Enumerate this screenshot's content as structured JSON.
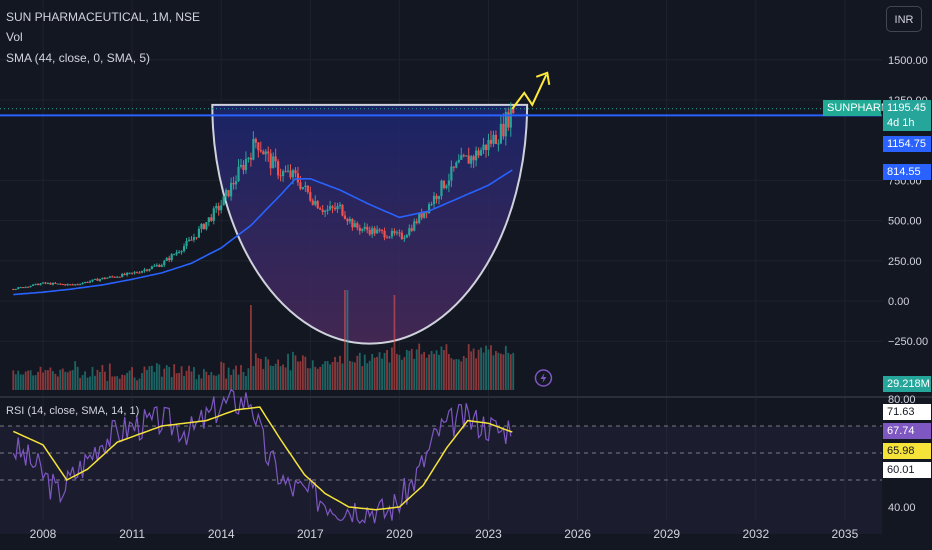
{
  "header": {
    "symbol_line": "SUN PHARMACEUTICAL, 1M, NSE",
    "volume_label": "Vol",
    "sma_label": "SMA (44, close, 0, SMA, 5)",
    "currency_button": "INR"
  },
  "price_axis": {
    "ticks": [
      "1500.00",
      "1250.00",
      "750.00",
      "500.00",
      "250.00",
      "0.00",
      "−250.00"
    ]
  },
  "price_tags": {
    "symbol_name": "SUNPHARMA",
    "last_price": "1195.45",
    "countdown": "4d 1h",
    "level_line": "1154.75",
    "sma_value": "814.55",
    "volume_value": "29.218M"
  },
  "rsi": {
    "label": "RSI (14, close, SMA, 14, 1)",
    "axis_ticks": [
      "80.00",
      "40.00"
    ],
    "values": {
      "v1": "71.63",
      "v2": "67.74",
      "v3": "65.98",
      "v4": "60.01"
    }
  },
  "time_axis": {
    "labels": [
      "2008",
      "2011",
      "2014",
      "2017",
      "2020",
      "2023",
      "2026",
      "2029",
      "2032",
      "2035"
    ]
  },
  "colors": {
    "background": "#131722",
    "up": "#26a69a",
    "down": "#ef5350",
    "sma": "#2962ff",
    "level_line": "#2962ff",
    "rsi_line": "#7e57c2",
    "rsi_sma": "#f5e33a",
    "cup_fill": "#3a2b6b",
    "arrow": "#ffeb3b",
    "symbol_tag": "#22ab94"
  },
  "chart_data": {
    "type": "candlestick",
    "title": "SUN PHARMACEUTICAL, 1M, NSE",
    "price_range": [
      -300,
      1600
    ],
    "close_path": [
      [
        2007.0,
        75
      ],
      [
        2008.0,
        110
      ],
      [
        2009.0,
        100
      ],
      [
        2010.0,
        140
      ],
      [
        2011.0,
        170
      ],
      [
        2012.0,
        230
      ],
      [
        2013.0,
        380
      ],
      [
        2014.0,
        600
      ],
      [
        2014.6,
        800
      ],
      [
        2015.2,
        1000
      ],
      [
        2015.6,
        880
      ],
      [
        2016.0,
        800
      ],
      [
        2016.5,
        770
      ],
      [
        2017.0,
        650
      ],
      [
        2017.5,
        560
      ],
      [
        2018.0,
        580
      ],
      [
        2018.5,
        460
      ],
      [
        2019.0,
        440
      ],
      [
        2019.5,
        420
      ],
      [
        2020.1,
        400
      ],
      [
        2020.5,
        480
      ],
      [
        2021.0,
        600
      ],
      [
        2021.5,
        730
      ],
      [
        2022.0,
        850
      ],
      [
        2022.5,
        900
      ],
      [
        2023.0,
        980
      ],
      [
        2023.4,
        1050
      ],
      [
        2023.8,
        1195.45
      ]
    ],
    "sma_path": [
      [
        2007.0,
        40
      ],
      [
        2008.0,
        55
      ],
      [
        2009.0,
        75
      ],
      [
        2010.0,
        100
      ],
      [
        2011.0,
        135
      ],
      [
        2012.0,
        175
      ],
      [
        2013.0,
        235
      ],
      [
        2014.0,
        330
      ],
      [
        2015.0,
        470
      ],
      [
        2016.0,
        660
      ],
      [
        2016.5,
        760
      ],
      [
        2017.0,
        760
      ],
      [
        2018.0,
        690
      ],
      [
        2019.0,
        600
      ],
      [
        2020.0,
        520
      ],
      [
        2021.0,
        560
      ],
      [
        2022.0,
        640
      ],
      [
        2023.0,
        720
      ],
      [
        2023.8,
        814.55
      ]
    ],
    "level_line": 1154.75,
    "rsi_range": [
      35,
      85
    ],
    "rsi_series": [
      [
        2007.0,
        62
      ],
      [
        2007.8,
        55
      ],
      [
        2008.5,
        45
      ],
      [
        2009.3,
        55
      ],
      [
        2010.0,
        65
      ],
      [
        2011.0,
        70
      ],
      [
        2012.0,
        72
      ],
      [
        2013.0,
        68
      ],
      [
        2014.0,
        78
      ],
      [
        2015.0,
        80
      ],
      [
        2015.5,
        60
      ],
      [
        2016.2,
        48
      ],
      [
        2017.0,
        45
      ],
      [
        2018.0,
        40
      ],
      [
        2018.8,
        40
      ],
      [
        2019.5,
        38
      ],
      [
        2020.0,
        42
      ],
      [
        2020.6,
        52
      ],
      [
        2021.3,
        68
      ],
      [
        2022.0,
        73
      ],
      [
        2022.5,
        72
      ],
      [
        2023.0,
        70
      ],
      [
        2023.5,
        68
      ],
      [
        2023.8,
        71.63
      ]
    ],
    "rsi_sma_series": [
      [
        2007.0,
        68
      ],
      [
        2008.0,
        63
      ],
      [
        2008.8,
        50
      ],
      [
        2009.5,
        54
      ],
      [
        2010.5,
        64
      ],
      [
        2012.0,
        70
      ],
      [
        2013.5,
        72
      ],
      [
        2014.5,
        76
      ],
      [
        2015.3,
        77
      ],
      [
        2016.0,
        65
      ],
      [
        2016.8,
        52
      ],
      [
        2017.5,
        45
      ],
      [
        2018.3,
        40
      ],
      [
        2019.2,
        39
      ],
      [
        2020.0,
        40
      ],
      [
        2020.8,
        48
      ],
      [
        2021.6,
        62
      ],
      [
        2022.3,
        72
      ],
      [
        2023.0,
        71
      ],
      [
        2023.8,
        67.74
      ]
    ]
  }
}
